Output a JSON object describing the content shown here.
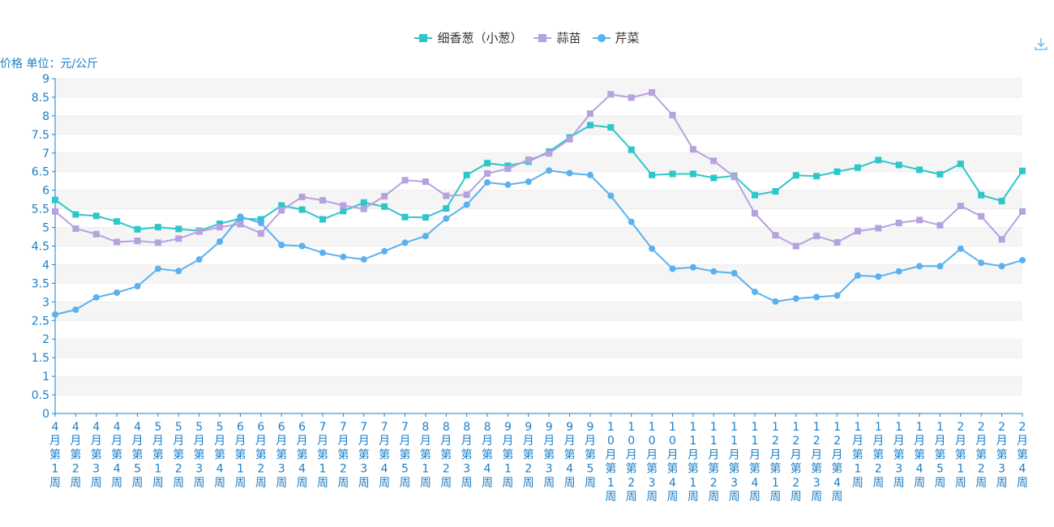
{
  "toolbar": {
    "download_icon": "download-icon"
  },
  "chart_data": {
    "type": "line",
    "ylabel": "价格 单位：元/公斤",
    "ylim": [
      0,
      9
    ],
    "yticks": [
      "0",
      "0.5",
      "1",
      "1.5",
      "2",
      "2.5",
      "3",
      "3.5",
      "4",
      "4.5",
      "5",
      "5.5",
      "6",
      "6.5",
      "7",
      "7.5",
      "8",
      "8.5",
      "9"
    ],
    "grid": "horizontal",
    "legend_position": "top-center",
    "categories": [
      "4月第1周",
      "4月第2周",
      "4月第3周",
      "4月第4周",
      "4月第5周",
      "5月第1周",
      "5月第2周",
      "5月第3周",
      "5月第4周",
      "6月第1周",
      "6月第2周",
      "6月第3周",
      "6月第4周",
      "7月第1周",
      "7月第2周",
      "7月第3周",
      "7月第4周",
      "7月第5周",
      "8月第1周",
      "8月第2周",
      "8月第3周",
      "8月第4周",
      "9月第1周",
      "9月第2周",
      "9月第3周",
      "9月第4周",
      "9月第5周",
      "10月第1周",
      "10月第2周",
      "10月第3周",
      "10月第4周",
      "11月第1周",
      "11月第2周",
      "11月第3周",
      "11月第4周",
      "12月第1周",
      "12月第2周",
      "12月第3周",
      "12月第4周",
      "1月第1周",
      "1月第2周",
      "1月第3周",
      "1月第4周",
      "1月第5周",
      "2月第1周",
      "2月第2周",
      "2月第3周",
      "2月第4周"
    ],
    "series": [
      {
        "name": "细香葱（小葱）",
        "color": "#2ec7c9",
        "marker": "square",
        "values": [
          5.74,
          5.35,
          5.31,
          5.16,
          4.95,
          5.01,
          4.96,
          4.91,
          5.1,
          5.24,
          5.22,
          5.59,
          5.48,
          5.22,
          5.44,
          5.67,
          5.56,
          5.28,
          5.27,
          5.51,
          6.41,
          6.73,
          6.66,
          6.77,
          7.04,
          7.42,
          7.75,
          7.69,
          7.09,
          6.41,
          6.44,
          6.44,
          6.33,
          6.39,
          5.87,
          5.97,
          6.4,
          6.38,
          6.5,
          6.61,
          6.81,
          6.68,
          6.55,
          6.43,
          6.71,
          5.87,
          5.71,
          6.52
        ]
      },
      {
        "name": "蒜苗",
        "color": "#b6a2de",
        "marker": "square",
        "values": [
          5.43,
          4.97,
          4.82,
          4.61,
          4.64,
          4.59,
          4.7,
          4.89,
          5.01,
          5.09,
          4.84,
          5.46,
          5.82,
          5.73,
          5.59,
          5.5,
          5.84,
          6.27,
          6.23,
          5.85,
          5.88,
          6.45,
          6.58,
          6.82,
          6.99,
          7.37,
          8.06,
          8.58,
          8.49,
          8.63,
          8.02,
          7.1,
          6.79,
          6.36,
          5.38,
          4.79,
          4.5,
          4.77,
          4.6,
          4.9,
          4.98,
          5.12,
          5.2,
          5.06,
          5.58,
          5.3,
          4.68,
          5.43
        ]
      },
      {
        "name": "芹菜",
        "color": "#5ab1ef",
        "marker": "circle",
        "values": [
          2.66,
          2.79,
          3.12,
          3.25,
          3.42,
          3.89,
          3.83,
          4.14,
          4.62,
          5.29,
          5.12,
          4.53,
          4.5,
          4.32,
          4.21,
          4.14,
          4.36,
          4.59,
          4.77,
          5.24,
          5.61,
          6.21,
          6.15,
          6.23,
          6.53,
          6.46,
          6.41,
          5.85,
          5.15,
          4.43,
          3.89,
          3.93,
          3.82,
          3.77,
          3.27,
          3.01,
          3.09,
          3.13,
          3.17,
          3.71,
          3.68,
          3.82,
          3.96,
          3.96,
          4.43,
          4.05,
          3.96,
          4.12
        ]
      }
    ]
  }
}
